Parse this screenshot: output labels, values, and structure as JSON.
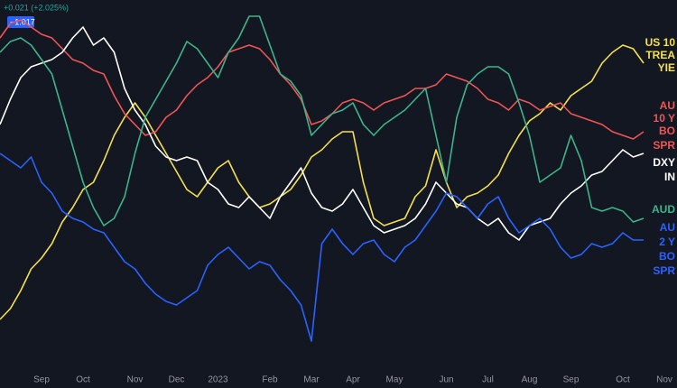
{
  "chart_data": {
    "type": "line",
    "header": [
      "+0.021 (+2.025%)",
      "−1.017"
    ],
    "categories": [
      null,
      null,
      null,
      null,
      "Sep",
      null,
      null,
      null,
      "Oct",
      null,
      null,
      null,
      null,
      "Nov",
      null,
      null,
      null,
      "Dec",
      null,
      null,
      null,
      "2023",
      null,
      null,
      null,
      null,
      "Feb",
      null,
      null,
      null,
      "Mar",
      null,
      null,
      null,
      "Apr",
      null,
      null,
      null,
      "May",
      null,
      null,
      null,
      null,
      "Jun",
      null,
      null,
      null,
      "Jul",
      null,
      null,
      null,
      "Aug",
      null,
      null,
      null,
      "Sep",
      null,
      null,
      null,
      null,
      "Oct",
      null,
      null,
      null,
      "Nov"
    ],
    "ylim": [
      0,
      100
    ],
    "series": [
      {
        "label": [
          "US 10",
          "TREA",
          "YIE"
        ],
        "color": "#f4e04d",
        "values": [
          14,
          17,
          22,
          28,
          31,
          35,
          41,
          45,
          50,
          52,
          58,
          65,
          70,
          74,
          70,
          65,
          60,
          55,
          50,
          48,
          52,
          56,
          58,
          52,
          48,
          45,
          46,
          48,
          50,
          54,
          59,
          61,
          64,
          66,
          66,
          52,
          42,
          40,
          41,
          42,
          48,
          51,
          61,
          52,
          45,
          48,
          49,
          51,
          54,
          60,
          65,
          69,
          71,
          74,
          72,
          76,
          78,
          80,
          85,
          88,
          90,
          89,
          85,
          null,
          null
        ]
      },
      {
        "label": [
          "AU",
          "10 Y",
          "BO",
          "SPR"
        ],
        "color": "#f05454",
        "values": [
          92,
          96,
          97,
          95,
          93,
          92,
          89,
          86,
          85,
          83,
          82,
          76,
          71,
          68,
          65,
          66,
          70,
          72,
          76,
          79,
          81,
          84,
          88,
          89,
          90,
          89,
          86,
          82,
          79,
          75,
          68,
          69,
          71,
          74,
          75,
          74,
          72,
          74,
          75,
          76,
          78,
          78,
          79,
          82,
          81,
          80,
          78,
          75,
          74,
          72,
          75,
          74,
          72,
          73,
          74,
          71,
          70,
          69,
          68,
          66,
          65,
          64,
          66,
          null,
          null
        ]
      },
      {
        "label": [
          "DXY",
          "IN"
        ],
        "color": "#ffffff",
        "values": [
          68,
          75,
          81,
          84,
          85,
          86,
          88,
          92,
          95,
          90,
          92,
          88,
          78,
          72,
          68,
          62,
          59,
          58,
          59,
          58,
          52,
          50,
          46,
          45,
          48,
          45,
          42,
          48,
          52,
          56,
          49,
          45,
          44,
          46,
          50,
          45,
          40,
          38,
          39,
          40,
          42,
          46,
          52,
          49,
          46,
          45,
          42,
          40,
          42,
          38,
          36,
          40,
          41,
          42,
          46,
          49,
          51,
          54,
          55,
          58,
          61,
          59,
          60,
          null,
          null
        ]
      },
      {
        "label": [
          "AUD"
        ],
        "color": "#3cb48c",
        "values": [
          88,
          91,
          92,
          90,
          86,
          82,
          72,
          62,
          52,
          45,
          40,
          42,
          48,
          60,
          70,
          75,
          80,
          85,
          91,
          89,
          85,
          81,
          88,
          92,
          98,
          98,
          90,
          82,
          80,
          76,
          65,
          68,
          71,
          72,
          74,
          68,
          65,
          68,
          70,
          72,
          75,
          78,
          65,
          52,
          70,
          79,
          82,
          84,
          84,
          82,
          74,
          65,
          52,
          54,
          56,
          65,
          58,
          45,
          44,
          45,
          44,
          41,
          42,
          null,
          null
        ]
      },
      {
        "label": [
          "AU",
          "2 Y",
          "BO",
          "SPR"
        ],
        "color": "#2962ff",
        "values": [
          60,
          58,
          56,
          59,
          52,
          49,
          44,
          42,
          41,
          39,
          38,
          34,
          30,
          28,
          24,
          21,
          19,
          18,
          20,
          22,
          29,
          32,
          34,
          31,
          28,
          30,
          29,
          25,
          22,
          18,
          8,
          35,
          39,
          35,
          32,
          35,
          36,
          32,
          30,
          34,
          36,
          40,
          44,
          49,
          48,
          45,
          42,
          46,
          48,
          42,
          38,
          40,
          42,
          39,
          34,
          31,
          32,
          35,
          34,
          35,
          38,
          36,
          36,
          null,
          null
        ]
      }
    ]
  }
}
